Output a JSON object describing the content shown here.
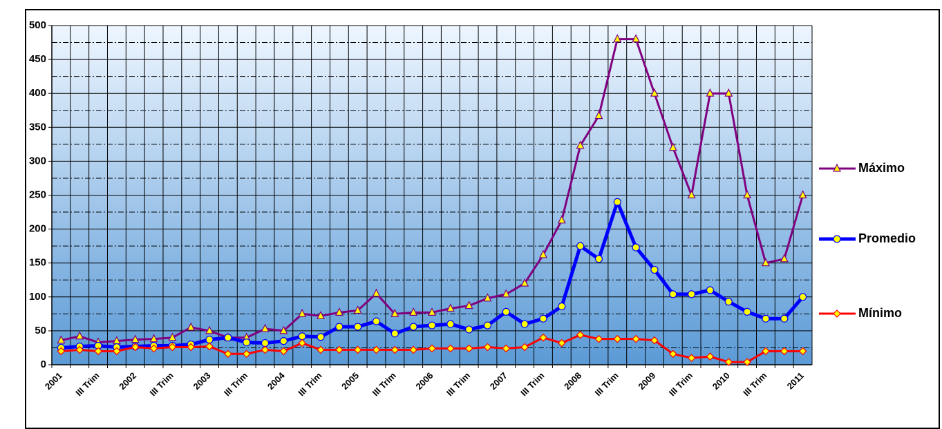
{
  "chart_data": {
    "type": "line",
    "categories": [
      "2001",
      null,
      "III Trim",
      null,
      "2002",
      null,
      "III Trim",
      null,
      "2003",
      null,
      "III Trim",
      null,
      "2004",
      null,
      "III Trim",
      null,
      "2005",
      null,
      "III Trim",
      null,
      "2006",
      null,
      "III Trim",
      null,
      "2007",
      null,
      "III Trim",
      null,
      "2008",
      null,
      "III Trim",
      null,
      "2009",
      null,
      "III Trim",
      null,
      "2010",
      null,
      "III Trim",
      null,
      "2011"
    ],
    "series": [
      {
        "name": "Máximo",
        "color": "#800080",
        "marker": "triangle",
        "values": [
          36,
          42,
          33,
          35,
          37,
          38,
          40,
          55,
          50,
          40,
          40,
          53,
          50,
          75,
          72,
          77,
          80,
          105,
          75,
          77,
          77,
          83,
          87,
          98,
          104,
          120,
          162,
          213,
          323,
          367,
          480,
          480,
          400,
          320,
          250,
          400,
          400,
          250,
          150,
          156,
          250
        ]
      },
      {
        "name": "Promedio",
        "color": "#0000ff",
        "marker": "circle",
        "values": [
          25,
          27,
          28,
          26,
          27,
          28,
          28,
          30,
          37,
          40,
          33,
          32,
          35,
          42,
          41,
          56,
          56,
          64,
          46,
          56,
          58,
          60,
          52,
          58,
          78,
          60,
          68,
          86,
          175,
          156,
          240,
          173,
          140,
          104,
          104,
          110,
          93,
          78,
          68,
          68,
          100
        ]
      },
      {
        "name": "Mínimo",
        "color": "#ff0000",
        "marker": "diamond",
        "values": [
          20,
          22,
          20,
          20,
          26,
          24,
          26,
          26,
          27,
          16,
          16,
          22,
          20,
          32,
          22,
          22,
          22,
          22,
          22,
          22,
          24,
          24,
          24,
          26,
          24,
          26,
          40,
          32,
          44,
          38,
          38,
          38,
          36,
          16,
          10,
          12,
          4,
          4,
          20,
          20,
          20
        ]
      }
    ],
    "ylim": [
      0,
      500
    ],
    "yticks": [
      0,
      50,
      100,
      150,
      200,
      250,
      300,
      350,
      400,
      450,
      500
    ],
    "yminorticks": [
      25,
      75,
      125,
      175,
      225,
      275,
      325,
      375,
      425,
      475
    ],
    "grid": true,
    "legend": "right"
  }
}
